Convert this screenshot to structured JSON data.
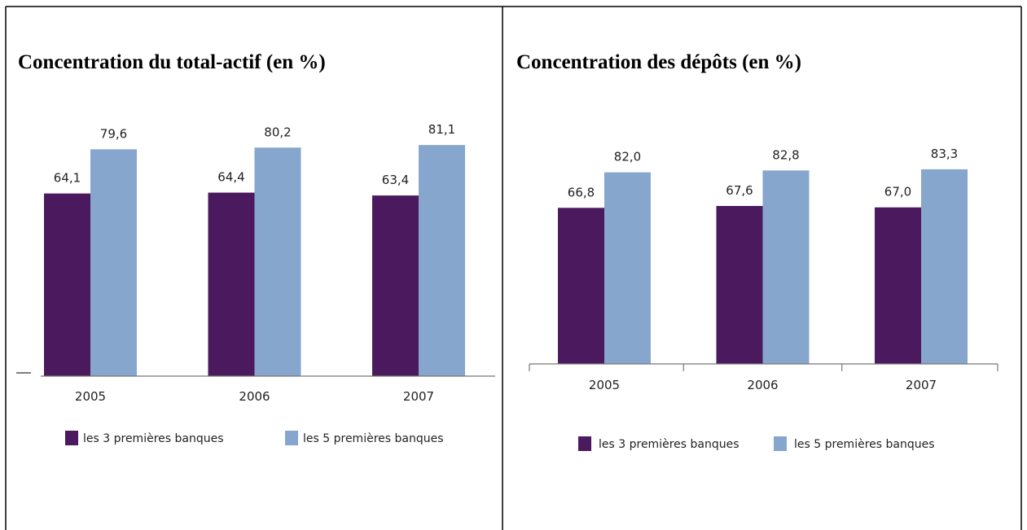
{
  "chart_data": [
    {
      "type": "bar",
      "title": "Concentration du total-actif (en %)",
      "categories": [
        "2005",
        "2006",
        "2007"
      ],
      "series": [
        {
          "name": "les 3 premières banques",
          "color": "#4b1a5e",
          "values": [
            64.1,
            64.4,
            63.4
          ],
          "value_labels": [
            "64,1",
            "64,4",
            "63,4"
          ]
        },
        {
          "name": "les 5 premières banques",
          "color": "#86a6cd",
          "values": [
            79.6,
            80.2,
            81.1
          ],
          "value_labels": [
            "79,6",
            "80,2",
            "81,1"
          ]
        }
      ],
      "ylim": [
        0,
        95
      ]
    },
    {
      "type": "bar",
      "title": "Concentration des dépôts (en %)",
      "categories": [
        "2005",
        "2006",
        "2007"
      ],
      "series": [
        {
          "name": "les 3 premières banques",
          "color": "#4b1a5e",
          "values": [
            66.8,
            67.6,
            67.0
          ],
          "value_labels": [
            "66,8",
            "67,6",
            "67,0"
          ]
        },
        {
          "name": "les 5 premières banques",
          "color": "#86a6cd",
          "values": [
            82.0,
            82.8,
            83.3
          ],
          "value_labels": [
            "82,0",
            "82,8",
            "83,3"
          ]
        }
      ],
      "ylim": [
        0,
        100
      ]
    }
  ]
}
